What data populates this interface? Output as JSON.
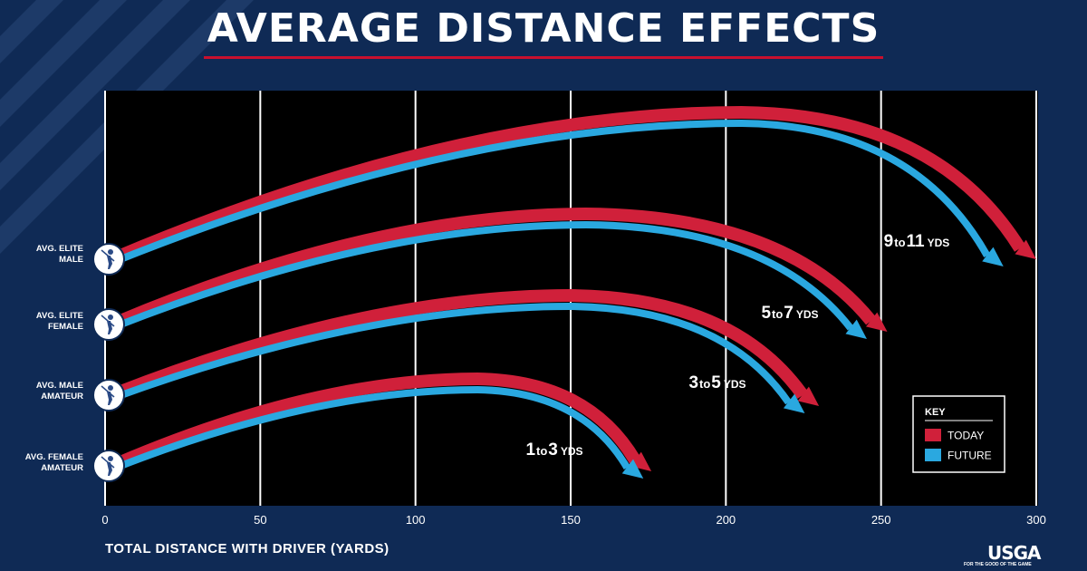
{
  "title": "AVERAGE DISTANCE EFFECTS",
  "chart_data": {
    "type": "line",
    "xlabel": "TOTAL DISTANCE WITH DRIVER (YARDS)",
    "xlim": [
      0,
      300
    ],
    "xticks": [
      0,
      50,
      100,
      150,
      200,
      250,
      300
    ],
    "grid": true,
    "series": [
      {
        "name": "TODAY",
        "color": "#d0203a"
      },
      {
        "name": "FUTURE",
        "color": "#2aa8e0"
      }
    ],
    "players": [
      {
        "label_line1": "AVG. ELITE",
        "label_line2": "MALE",
        "today_yds": 300,
        "future_yds": 290,
        "apex_x": 205,
        "reduction_a": "9",
        "reduction_to": "to",
        "reduction_b": "11",
        "unit": "YDS"
      },
      {
        "label_line1": "AVG. ELITE",
        "label_line2": "FEMALE",
        "today_yds": 252,
        "future_yds": 246,
        "apex_x": 155,
        "reduction_a": "5",
        "reduction_to": "to",
        "reduction_b": "7",
        "unit": "YDS"
      },
      {
        "label_line1": "AVG. MALE",
        "label_line2": "AMATEUR",
        "today_yds": 230,
        "future_yds": 226,
        "apex_x": 150,
        "reduction_a": "3",
        "reduction_to": "to",
        "reduction_b": "5",
        "unit": "YDS"
      },
      {
        "label_line1": "AVG. FEMALE",
        "label_line2": "AMATEUR",
        "today_yds": 176,
        "future_yds": 174,
        "apex_x": 120,
        "reduction_a": "1",
        "reduction_to": "to",
        "reduction_b": "3",
        "unit": "YDS"
      }
    ],
    "legend": {
      "title": "KEY",
      "position": "bottom-right"
    }
  },
  "brand": {
    "logo": "USGA",
    "tagline": "FOR THE GOOD OF THE GAME"
  },
  "colors": {
    "background": "#0f2a55",
    "plot": "#000000",
    "today": "#d0203a",
    "future": "#2aa8e0"
  }
}
